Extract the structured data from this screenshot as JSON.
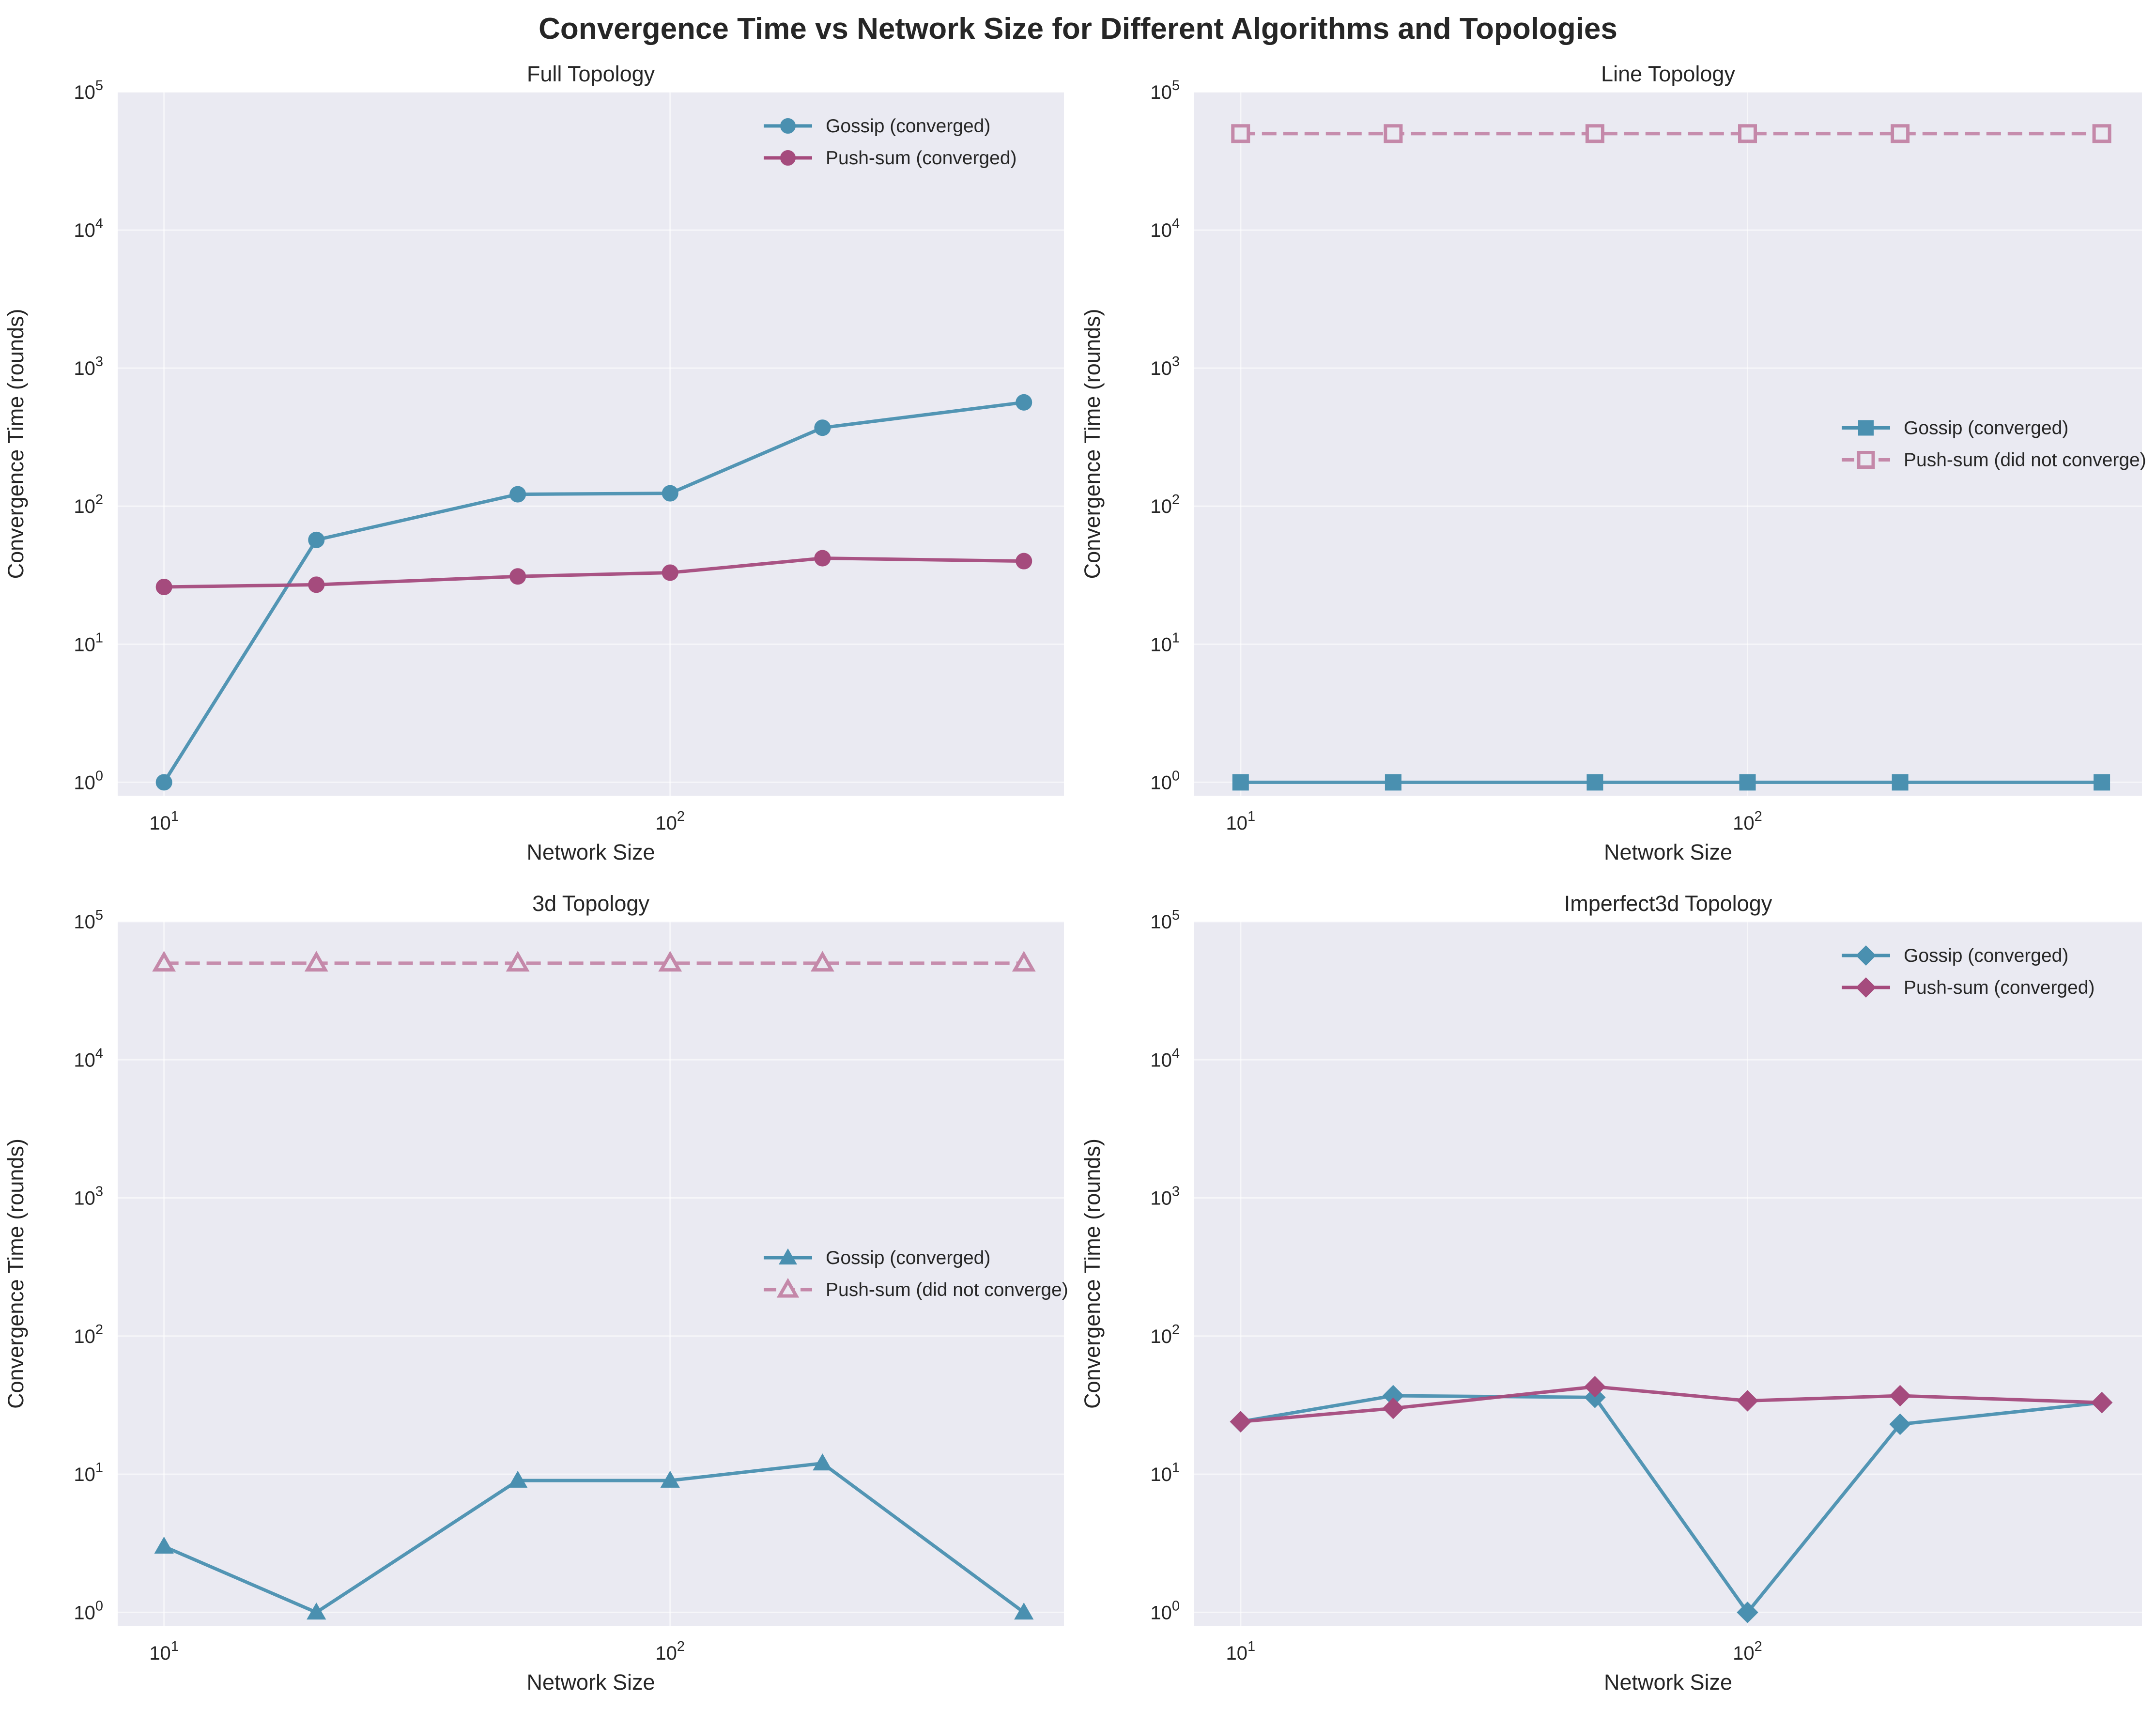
{
  "figure": {
    "title": "Convergence Time vs Network Size for Different Algorithms and Topologies"
  },
  "colors": {
    "gossip": "#4a90b0",
    "pushsum": "#a54b7d",
    "pushsum_dnc": "#c488a9",
    "panel_bg": "#eaeaf2",
    "grid": "#ffffff",
    "text": "#262626"
  },
  "chart_data": [
    {
      "type": "line",
      "title": "Full Topology",
      "xlabel": "Network Size",
      "ylabel": "Convergence Time (rounds)",
      "xscale": "log",
      "yscale": "log",
      "xlim": [
        8.1,
        600
      ],
      "ylim": [
        0.8,
        100000
      ],
      "xticks": [
        {
          "value": 10,
          "base": "10",
          "exp": "1"
        },
        {
          "value": 100,
          "base": "10",
          "exp": "2"
        }
      ],
      "yticks": [
        {
          "value": 1,
          "base": "10",
          "exp": "0"
        },
        {
          "value": 10,
          "base": "10",
          "exp": "1"
        },
        {
          "value": 100,
          "base": "10",
          "exp": "2"
        },
        {
          "value": 1000,
          "base": "10",
          "exp": "3"
        },
        {
          "value": 10000,
          "base": "10",
          "exp": "4"
        },
        {
          "value": 100000,
          "base": "10",
          "exp": "5"
        }
      ],
      "grid": true,
      "legend": "top-right",
      "series": [
        {
          "name": "Gossip (converged)",
          "marker": "circle",
          "color": "gossip",
          "dashed": false,
          "filled": true,
          "x": [
            10,
            20,
            50,
            100,
            200,
            500
          ],
          "y": [
            1,
            57,
            122,
            124,
            370,
            565
          ]
        },
        {
          "name": "Push-sum (converged)",
          "marker": "circle",
          "color": "pushsum",
          "dashed": false,
          "filled": true,
          "x": [
            10,
            20,
            50,
            100,
            200,
            500
          ],
          "y": [
            26,
            27,
            31,
            33,
            42,
            40
          ]
        }
      ]
    },
    {
      "type": "line",
      "title": "Line Topology",
      "xlabel": "Network Size",
      "ylabel": "Convergence Time (rounds)",
      "xscale": "log",
      "yscale": "log",
      "xlim": [
        8.1,
        600
      ],
      "ylim": [
        0.8,
        100000
      ],
      "xticks": [
        {
          "value": 10,
          "base": "10",
          "exp": "1"
        },
        {
          "value": 100,
          "base": "10",
          "exp": "2"
        }
      ],
      "yticks": [
        {
          "value": 1,
          "base": "10",
          "exp": "0"
        },
        {
          "value": 10,
          "base": "10",
          "exp": "1"
        },
        {
          "value": 100,
          "base": "10",
          "exp": "2"
        },
        {
          "value": 1000,
          "base": "10",
          "exp": "3"
        },
        {
          "value": 10000,
          "base": "10",
          "exp": "4"
        },
        {
          "value": 100000,
          "base": "10",
          "exp": "5"
        }
      ],
      "grid": true,
      "legend": "center-right",
      "series": [
        {
          "name": "Gossip (converged)",
          "marker": "square",
          "color": "gossip",
          "dashed": false,
          "filled": true,
          "x": [
            10,
            20,
            50,
            100,
            200,
            500
          ],
          "y": [
            1,
            1,
            1,
            1,
            1,
            1
          ]
        },
        {
          "name": "Push-sum (did not converge)",
          "marker": "square",
          "color": "pushsum_dnc",
          "dashed": true,
          "filled": false,
          "x": [
            10,
            20,
            50,
            100,
            200,
            500
          ],
          "y": [
            50000,
            50000,
            50000,
            50000,
            50000,
            50000
          ]
        }
      ]
    },
    {
      "type": "line",
      "title": "3d Topology",
      "xlabel": "Network Size",
      "ylabel": "Convergence Time (rounds)",
      "xscale": "log",
      "yscale": "log",
      "xlim": [
        8.1,
        600
      ],
      "ylim": [
        0.8,
        100000
      ],
      "xticks": [
        {
          "value": 10,
          "base": "10",
          "exp": "1"
        },
        {
          "value": 100,
          "base": "10",
          "exp": "2"
        }
      ],
      "yticks": [
        {
          "value": 1,
          "base": "10",
          "exp": "0"
        },
        {
          "value": 10,
          "base": "10",
          "exp": "1"
        },
        {
          "value": 100,
          "base": "10",
          "exp": "2"
        },
        {
          "value": 1000,
          "base": "10",
          "exp": "3"
        },
        {
          "value": 10000,
          "base": "10",
          "exp": "4"
        },
        {
          "value": 100000,
          "base": "10",
          "exp": "5"
        }
      ],
      "grid": true,
      "legend": "center-right",
      "series": [
        {
          "name": "Gossip (converged)",
          "marker": "triangle",
          "color": "gossip",
          "dashed": false,
          "filled": true,
          "x": [
            10,
            20,
            50,
            100,
            200,
            500
          ],
          "y": [
            3,
            1,
            9,
            9,
            12,
            1
          ]
        },
        {
          "name": "Push-sum (did not converge)",
          "marker": "triangle",
          "color": "pushsum_dnc",
          "dashed": true,
          "filled": false,
          "x": [
            10,
            20,
            50,
            100,
            200,
            500
          ],
          "y": [
            50000,
            50000,
            50000,
            50000,
            50000,
            50000
          ]
        }
      ]
    },
    {
      "type": "line",
      "title": "Imperfect3d Topology",
      "xlabel": "Network Size",
      "ylabel": "Convergence Time (rounds)",
      "xscale": "log",
      "yscale": "log",
      "xlim": [
        8.1,
        600
      ],
      "ylim": [
        0.8,
        100000
      ],
      "xticks": [
        {
          "value": 10,
          "base": "10",
          "exp": "1"
        },
        {
          "value": 100,
          "base": "10",
          "exp": "2"
        }
      ],
      "yticks": [
        {
          "value": 1,
          "base": "10",
          "exp": "0"
        },
        {
          "value": 10,
          "base": "10",
          "exp": "1"
        },
        {
          "value": 100,
          "base": "10",
          "exp": "2"
        },
        {
          "value": 1000,
          "base": "10",
          "exp": "3"
        },
        {
          "value": 10000,
          "base": "10",
          "exp": "4"
        },
        {
          "value": 100000,
          "base": "10",
          "exp": "5"
        }
      ],
      "grid": true,
      "legend": "top-right",
      "series": [
        {
          "name": "Gossip (converged)",
          "marker": "diamond",
          "color": "gossip",
          "dashed": false,
          "filled": true,
          "x": [
            10,
            20,
            50,
            100,
            200,
            500
          ],
          "y": [
            24,
            37,
            36,
            1,
            23,
            33
          ]
        },
        {
          "name": "Push-sum (converged)",
          "marker": "diamond",
          "color": "pushsum",
          "dashed": false,
          "filled": true,
          "x": [
            10,
            20,
            50,
            100,
            200,
            500
          ],
          "y": [
            24,
            30,
            43,
            34,
            37,
            33
          ]
        }
      ]
    }
  ]
}
